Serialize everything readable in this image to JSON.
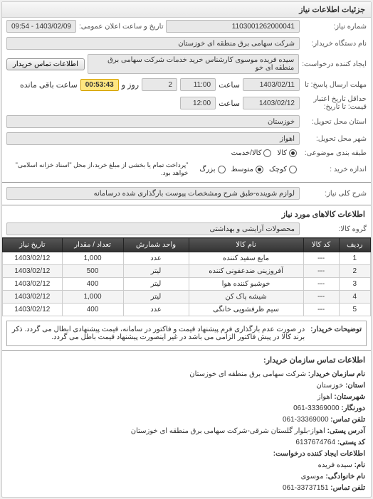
{
  "panel_title": "جزئیات اطلاعات نیاز",
  "form": {
    "req_no_label": "شماره نیاز:",
    "req_no": "1103001262000041",
    "announce_label": "تاریخ و ساعت اعلان عمومی:",
    "announce_value": "1403/02/09 - 09:54",
    "buyer_org_label": "نام دستگاه خریدار:",
    "buyer_org": "شرکت سهامی برق منطقه ای خوزستان",
    "creator_label": "ایجاد کننده درخواست:",
    "creator": "سیده فریده موسوی کارشناس خرید خدمات شرکت سهامی برق منطقه ای خو",
    "contact_btn": "اطلاعات تماس خریدار",
    "deadline_send_label": "مهلت ارسال پاسخ: تا",
    "deadline_send_date": "1403/02/11",
    "time_label": "ساعت",
    "deadline_send_time": "11:00",
    "remaining_days": "2",
    "remaining_day_label": "روز و",
    "remaining_time": "00:53:43",
    "remaining_suffix": "ساعت باقی مانده",
    "validity_label": "حداقل تاریخ اعتبار",
    "validity_sub": "قیمت: تا تاریخ:",
    "validity_date": "1403/02/12",
    "validity_time": "12:00",
    "province_label": "استان محل تحویل:",
    "province": "خوزستان",
    "city_label": "شهر محل تحویل:",
    "city": "اهواز",
    "subject_type_label": "طبقه بندی موضوعی:",
    "goods": "کالا",
    "service": "کالا/خدمت",
    "size_label": "اندازه خرید :",
    "small": "کوچک",
    "medium": "متوسط",
    "large": "بزرگ",
    "payment_note": "\"پرداخت تمام یا بخشی از مبلغ خرید،از محل \"اسناد خزانه اسلامی\" خواهد بود.",
    "need_desc_label": "شرح کلی نیاز:",
    "need_desc": "لوازم شوینده-طبق شرح ومشخصات پیوست بارگذاری شده درسامانه"
  },
  "goods_section_title": "اطلاعات کالاهای مورد نیاز",
  "goods_group_label": "گروه کالا:",
  "goods_group": "محصولات آرایشی و بهداشتی",
  "table": {
    "headers": [
      "ردیف",
      "کد کالا",
      "نام کالا",
      "واحد شمارش",
      "تعداد / مقدار",
      "تاریخ نیاز"
    ],
    "rows": [
      [
        "1",
        "---",
        "مایع سفید کننده",
        "عدد",
        "1,000",
        "1403/02/12"
      ],
      [
        "2",
        "---",
        "آفروزینی ضدعفونی کننده",
        "لیتر",
        "500",
        "1403/02/12"
      ],
      [
        "3",
        "---",
        "خوشبو کننده هوا",
        "لیتر",
        "400",
        "1403/02/12"
      ],
      [
        "4",
        "---",
        "شیشه پاک کن",
        "لیتر",
        "1,000",
        "1403/02/12"
      ],
      [
        "5",
        "---",
        "سیم ظرفشویی خانگی",
        "عدد",
        "400",
        "1403/02/12"
      ]
    ]
  },
  "buyer_note_label": "توضیحات خریدار:",
  "buyer_note": "در صورت عدم بارگذاری فرم پیشنهاد قیمت و فاکتور در سامانه، قیمت پیشنهادی ابطال می گردد. ذکر برند کالا در پیش فاکتور الزامی می باشد در غیر اینصورت پیشنهاد قیمت باطل می گردد.",
  "buyer_info_title": "اطلاعات تماس سازمان خریدار:",
  "buyer_info": {
    "org_label": "نام سازمان خریدار:",
    "org": "شرکت سهامی برق منطقه ای خوزستان",
    "province_label": "استان:",
    "province": "خوزستان",
    "city_label": "شهرستان:",
    "city": "اهواز",
    "zip_label": "دورنگار:",
    "zip": "33369000-061",
    "phone_label": "تلفن تماس:",
    "phone": "33369000-061",
    "address_label": "آدرس پستی:",
    "address": "اهواز-بلوار گلستان شرقی-شرکت سهامی برق منطقه ای خوزستان",
    "postal_label": "کد پستی:",
    "postal": "6137674764",
    "creator_section": "اطلاعات ایجاد کننده درخواست:",
    "name_label": "نام:",
    "name": "سیده فریده",
    "family_label": "نام خانوادگی:",
    "family": "موسوی",
    "contact_phone_label": "تلفن تماس:",
    "contact_phone": "33737151-061"
  }
}
